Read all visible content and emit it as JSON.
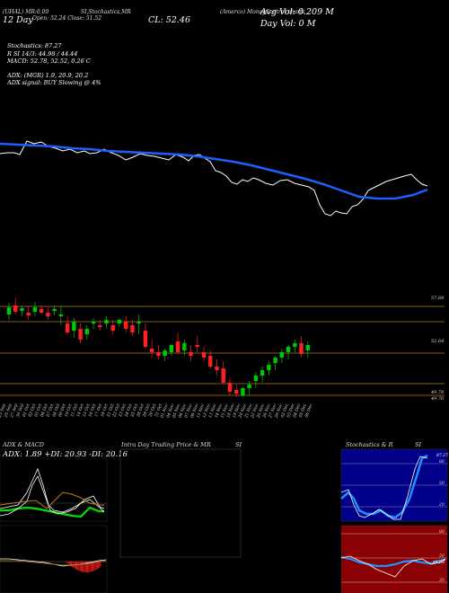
{
  "header": {
    "line1": {
      "symbol": "(Amerco) MoneyControl charts",
      "indicators": "SI,Stochastics,MR",
      "ticker": "(UHAL)",
      "mr": "MR:0.00"
    },
    "price_summary": "Open: 52.24 Close: 51.52",
    "day_label": "12 Day",
    "close_label": "CL: 52.46",
    "avg_vol": "Avg Vol: 0.209 M",
    "day_vol": "Day Vol: 0   M"
  },
  "stats": {
    "stochastics": "Stochastics: 87.27",
    "rsi": "R                    SI 14/3: 44.98 / 44.44",
    "macd": "MACD: 52.78,  52.52,  0.26   C",
    "adx": "ADX:                        (MGR) 1.9,  20.9,  20.2",
    "adx_signal": "ADX  signal:                       BUY Slowing @ 4%"
  },
  "price_levels": [
    "57.68",
    "52.64",
    "49.78",
    "49.76"
  ],
  "dates": [
    "23 Sep",
    "25 Sep",
    "27 Sep",
    "30 Sep",
    "01 Oct",
    "02 Oct",
    "03 Oct",
    "04 Oct",
    "07 Oct",
    "08 Oct",
    "09 Oct",
    "10 Oct",
    "11 Oct",
    "14 Oct",
    "15 Oct",
    "16 Oct",
    "17 Oct",
    "18 Oct",
    "21 Oct",
    "22 Oct",
    "23 Oct",
    "24 Oct",
    "25 Oct",
    "28 Oct",
    "29 Oct",
    "30 Oct",
    "31 Oct",
    "01 Nov",
    "04 Nov",
    "05 Nov",
    "06 Nov",
    "07 Nov",
    "08 Nov",
    "11 Nov",
    "12 Nov",
    "13 Nov",
    "14 Nov",
    "15 Nov",
    "18 Nov",
    "19 Nov",
    "20 Nov",
    "21 Nov",
    "22 Nov",
    "25 Nov",
    "26 Nov",
    "27 Nov",
    "29 Nov",
    "02 Dec",
    "03 Dec",
    "04 Dec",
    "05 Dec",
    "06 Dec"
  ],
  "panels": {
    "adx_title": "ADX  & MACD",
    "adx_values": "ADX: 1.89  +DI: 20.93 -DI: 20.16",
    "intraday_title": "Intra  Day Trading Price  & MR",
    "intraday_si": "SI",
    "stoch_title": "Stochastics & R",
    "stoch_si": "SI",
    "stoch_levels": [
      "80",
      "50",
      "20"
    ],
    "stoch_value": "87.27",
    "rsi_levels": [
      "80",
      "50",
      "20"
    ],
    "rsi_value": "44.98"
  },
  "colors": {
    "background": "#000000",
    "ma_line": "#1e5fff",
    "price_line": "#ffffff",
    "up_candle": "#00c800",
    "down_candle": "#ff2020",
    "level_line": "#b07a20",
    "rsi_bg": "#8b0000"
  }
}
